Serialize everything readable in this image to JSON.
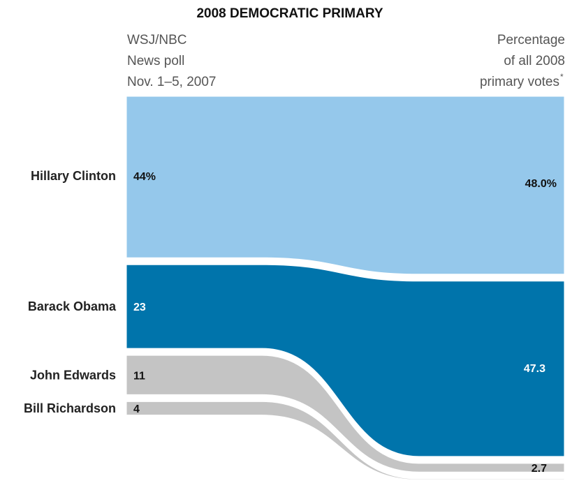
{
  "chart_data": {
    "type": "sankey",
    "title": "2008 DEMOCRATIC PRIMARY",
    "left_header": [
      "WSJ/NBC",
      "News poll",
      "Nov. 1–5, 2007"
    ],
    "right_header": [
      "Percentage",
      "of all 2008",
      "primary votes"
    ],
    "right_header_marker": "*",
    "series": [
      {
        "name": "Hillary Clinton",
        "left_value": 44,
        "left_label": "44%",
        "right_value": 48.0,
        "right_label": "48.0%",
        "color": "#95c8eb",
        "label_color": "#111111"
      },
      {
        "name": "Barack Obama",
        "left_value": 23,
        "left_label": "23",
        "right_value": 47.3,
        "right_label": "47.3",
        "color": "#0074ab",
        "label_color": "#ffffff"
      },
      {
        "name": "John Edwards",
        "left_value": 11,
        "left_label": "11",
        "right_value": 2.7,
        "right_label": "2.7",
        "color": "#c4c4c4",
        "label_color": "#111111"
      },
      {
        "name": "Bill Richardson",
        "left_value": 4,
        "left_label": "4",
        "right_value": 0.6,
        "right_label": "",
        "color": "#c4c4c4",
        "label_color": "#111111"
      }
    ]
  }
}
